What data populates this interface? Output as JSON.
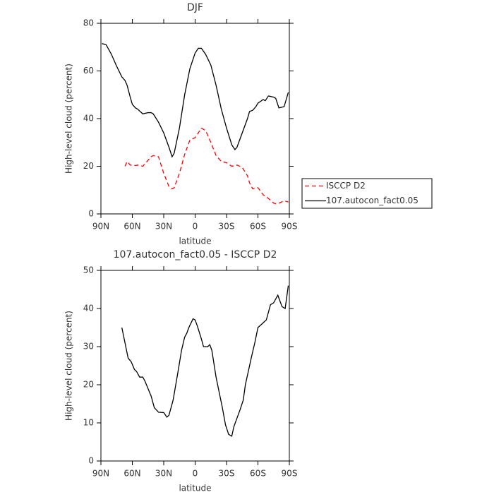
{
  "chart_data": [
    {
      "type": "line",
      "title": "DJF",
      "xlabel": "latitude",
      "ylabel": "High-level cloud (percent)",
      "x": [
        89,
        85,
        80,
        75,
        70,
        67,
        65,
        62,
        60,
        57,
        55,
        50,
        45,
        42,
        40,
        35,
        30,
        25,
        22,
        20,
        15,
        10,
        5,
        0,
        -3,
        -6,
        -10,
        -15,
        -20,
        -25,
        -30,
        -35,
        -38,
        -40,
        -45,
        -50,
        -52,
        -55,
        -58,
        -60,
        -65,
        -67,
        -70,
        -75,
        -77,
        -80,
        -85,
        -89
      ],
      "series": [
        {
          "name": "ISCCP D2",
          "color": "#ff0000",
          "linestyle": "dashed",
          "values": [
            null,
            null,
            null,
            null,
            null,
            20,
            22,
            20.5,
            20.5,
            20.3,
            20.5,
            20,
            22.5,
            24,
            24.5,
            24,
            17,
            11.5,
            10.5,
            11,
            17,
            25,
            31,
            32,
            34,
            36,
            35,
            30,
            24.5,
            22,
            21.5,
            20,
            20.3,
            20.5,
            19.5,
            16,
            13,
            10.5,
            11,
            11,
            8,
            7.5,
            6.5,
            4.5,
            4.3,
            4.5,
            5.5,
            5
          ]
        },
        {
          "name": "107.autocon_fact0.05",
          "color": "#000000",
          "linestyle": "solid",
          "values": [
            71.5,
            71,
            67,
            62,
            57.5,
            56,
            54,
            49,
            46,
            44.5,
            44,
            42,
            42.5,
            42.5,
            42,
            38.5,
            34,
            28,
            24,
            25.5,
            36,
            50,
            61,
            67.5,
            69.5,
            69.5,
            67,
            62.5,
            54,
            44,
            36,
            29,
            27,
            28,
            34,
            40,
            43,
            43.5,
            45,
            46.5,
            48,
            47.5,
            49.5,
            49,
            48.5,
            44.5,
            45,
            51
          ]
        }
      ],
      "xlim": [
        90,
        -90
      ],
      "xticks": [
        {
          "value": 90,
          "label": "90N"
        },
        {
          "value": 60,
          "label": "60N"
        },
        {
          "value": 30,
          "label": "30N"
        },
        0,
        {
          "value": -30,
          "label": "30S"
        },
        {
          "value": -60,
          "label": "60S"
        },
        {
          "value": -90,
          "label": "90S"
        }
      ],
      "ylim": [
        0,
        80
      ],
      "yticks": [
        0,
        20,
        40,
        60,
        80
      ],
      "legend": "right"
    },
    {
      "type": "line",
      "title": "107.autocon_fact0.05 - ISCCP D2",
      "xlabel": "latitude",
      "ylabel": "High-level cloud (percent)",
      "x": [
        70,
        64,
        61,
        58,
        56,
        53,
        50,
        48,
        45,
        42,
        39,
        35,
        30,
        27,
        25,
        21,
        16,
        13,
        10,
        8,
        6,
        2,
        0,
        -2,
        -6,
        -8,
        -12,
        -14,
        -16,
        -20,
        -26,
        -29,
        -32,
        -35,
        -37,
        -41,
        -43,
        -46,
        -48,
        -52,
        -54,
        -57,
        -60,
        -64,
        -68,
        -72,
        -75,
        -79,
        -83,
        -86,
        -89
      ],
      "series": [
        {
          "name": "107.autocon_fact0.05 - ISCCP D2",
          "color": "#000000",
          "linestyle": "solid",
          "values": [
            35,
            27,
            26,
            24,
            23.5,
            22,
            22,
            21,
            19,
            17,
            14,
            12.8,
            12.7,
            11.5,
            12,
            16,
            24,
            29,
            32.5,
            33.5,
            35,
            37.3,
            37,
            35.5,
            32,
            30,
            30,
            30.5,
            29,
            22,
            14,
            9.5,
            7,
            6.5,
            9,
            12,
            13.5,
            16,
            20,
            25,
            27.5,
            31,
            35,
            36,
            37,
            41,
            41.5,
            43.5,
            40.5,
            40,
            46
          ]
        }
      ],
      "xlim": [
        90,
        -90
      ],
      "xticks": [
        {
          "value": 90,
          "label": "90N"
        },
        {
          "value": 60,
          "label": "60N"
        },
        {
          "value": 30,
          "label": "30N"
        },
        0,
        {
          "value": -30,
          "label": "30S"
        },
        {
          "value": -60,
          "label": "60S"
        },
        {
          "value": -90,
          "label": "90S"
        }
      ],
      "ylim": [
        0,
        50
      ],
      "yticks": [
        0,
        10,
        20,
        30,
        40,
        50
      ]
    }
  ]
}
